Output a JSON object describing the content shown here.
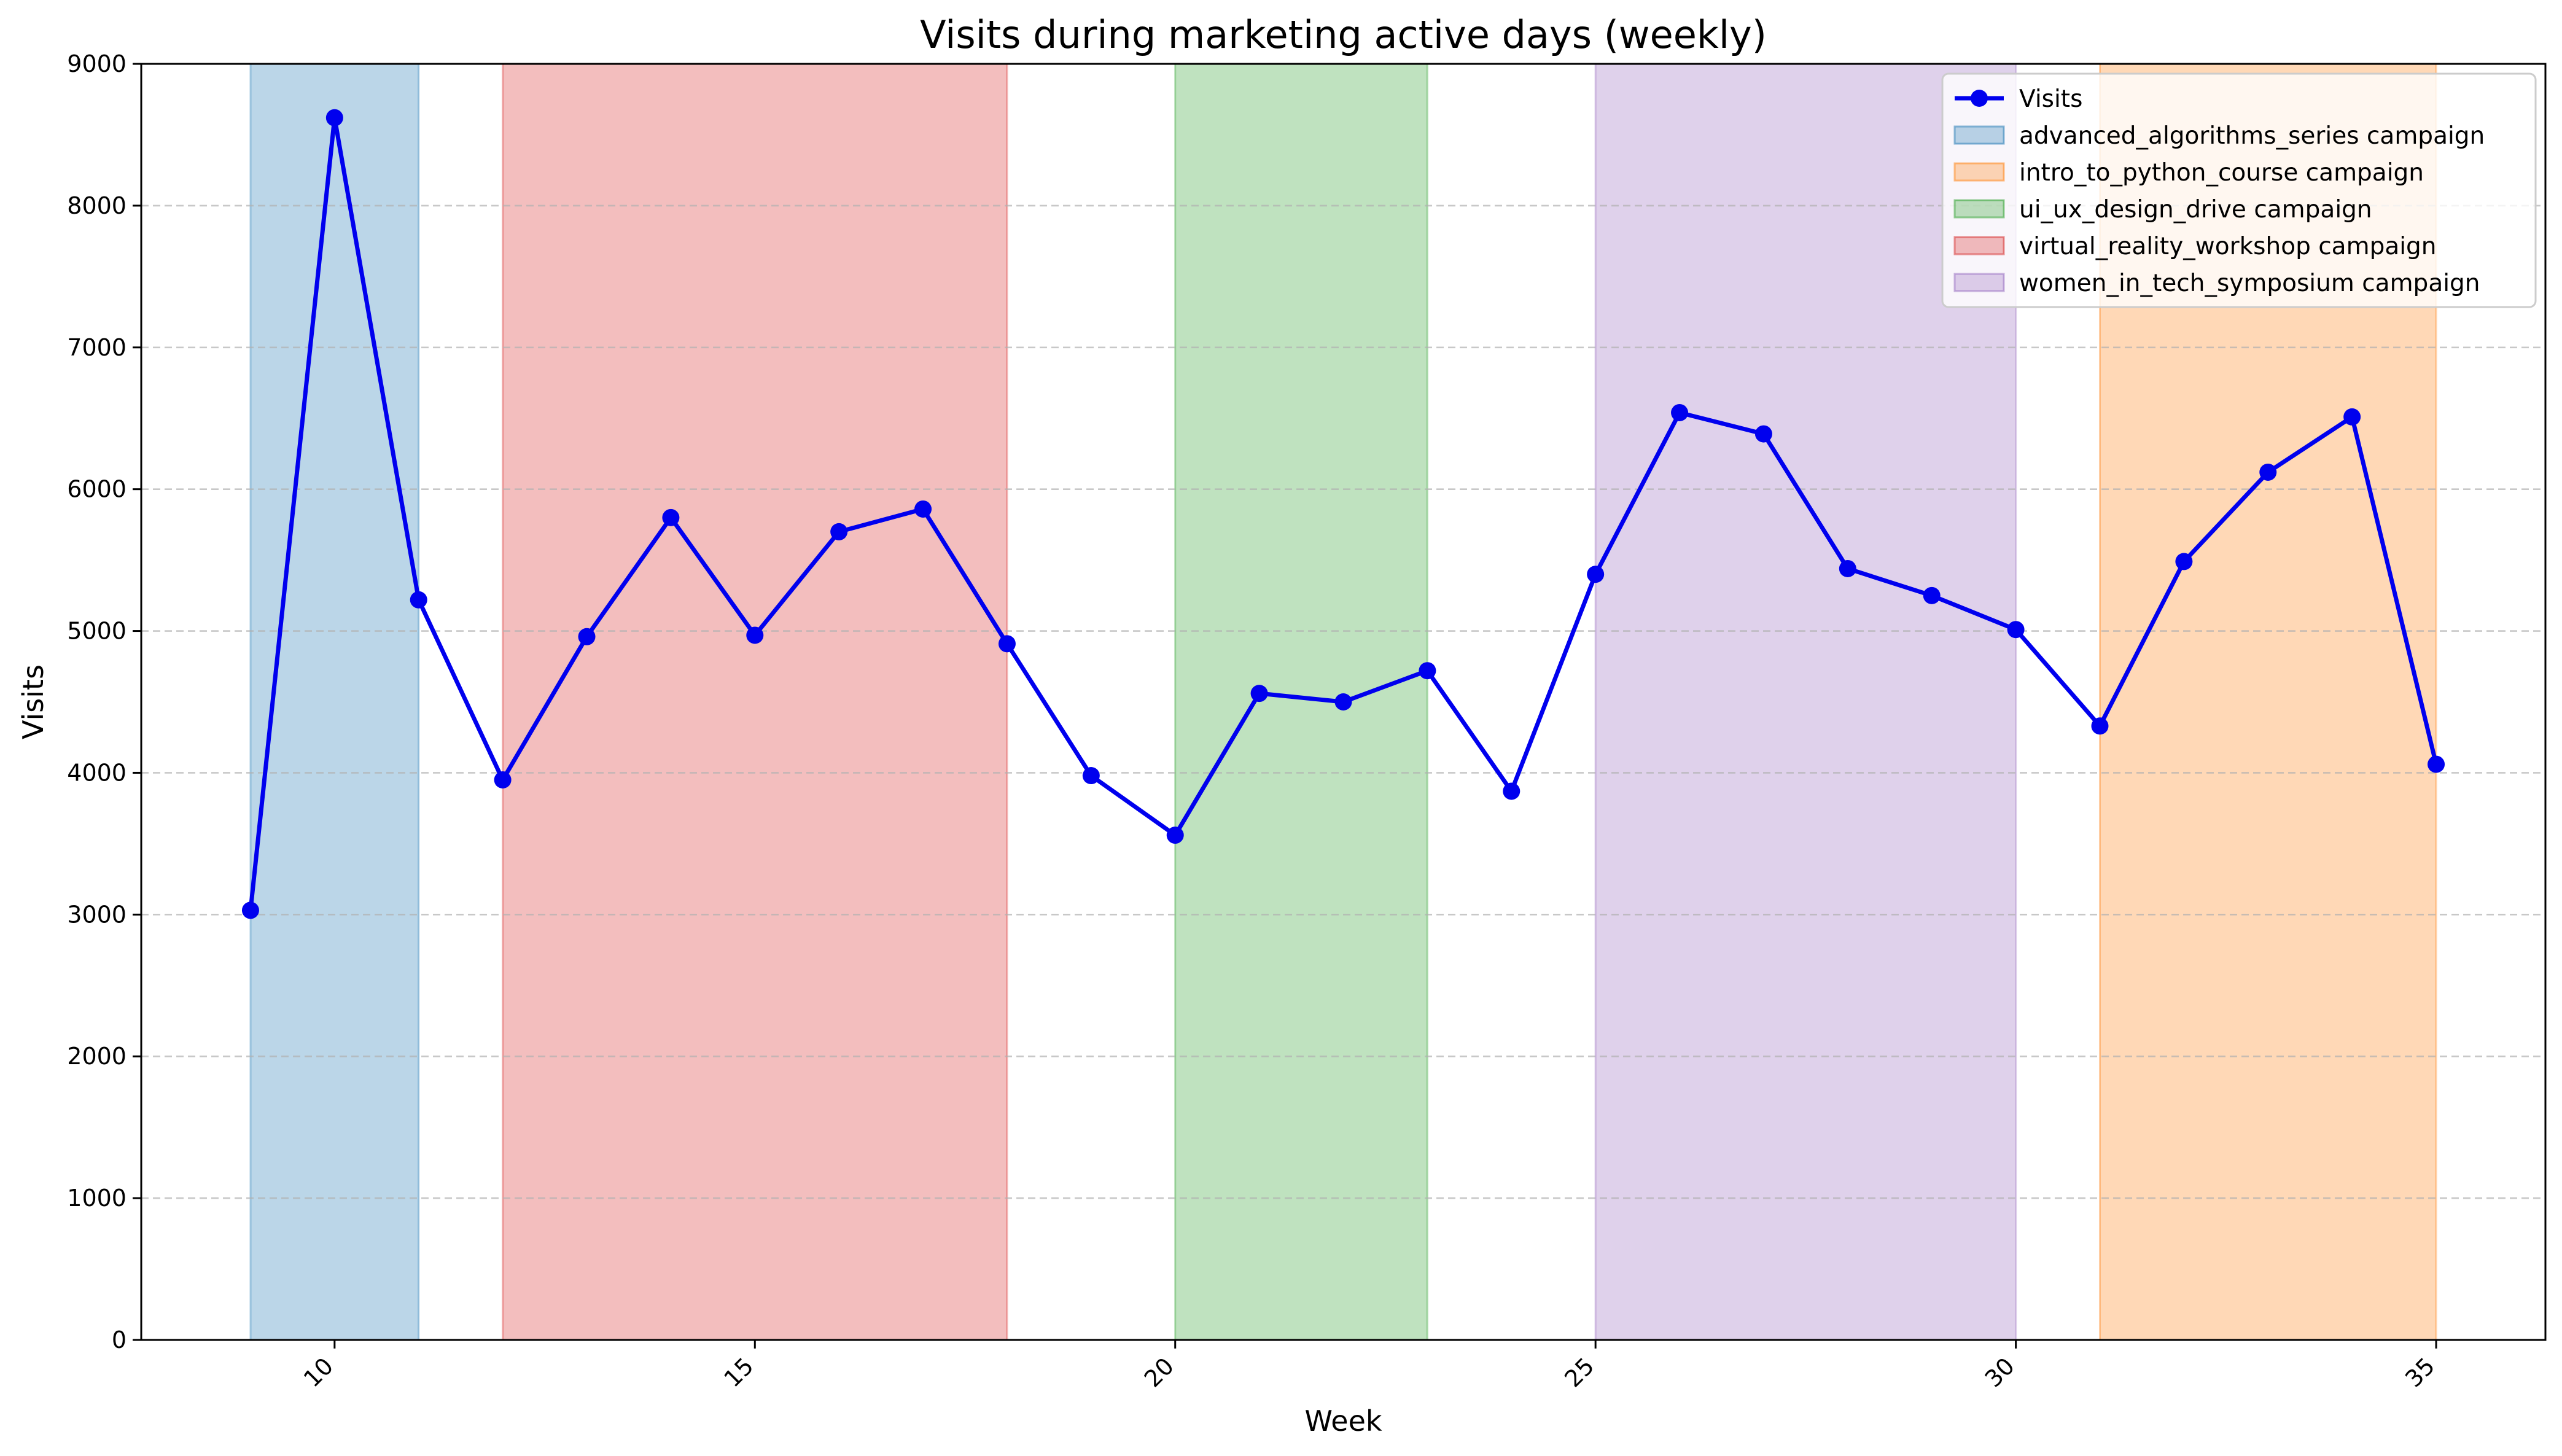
{
  "chart_data": {
    "type": "line",
    "title": "Visits during marketing active days (weekly)",
    "xlabel": "Week",
    "ylabel": "Visits",
    "xlim": [
      7.7,
      36.3
    ],
    "ylim": [
      0,
      9000
    ],
    "x_ticks": [
      10,
      15,
      20,
      25,
      30,
      35
    ],
    "y_ticks": [
      0,
      1000,
      2000,
      3000,
      4000,
      5000,
      6000,
      7000,
      8000,
      9000
    ],
    "grid": "horizontal dashed",
    "legend_position": "top-right",
    "series": [
      {
        "name": "Visits",
        "color": "#0000ee",
        "x": [
          9,
          10,
          11,
          12,
          13,
          14,
          15,
          16,
          17,
          18,
          19,
          20,
          21,
          22,
          23,
          24,
          25,
          26,
          27,
          28,
          29,
          30,
          31,
          32,
          33,
          34,
          35
        ],
        "values": [
          3030,
          8620,
          5220,
          3950,
          4960,
          5800,
          4970,
          5700,
          5860,
          4910,
          3980,
          3560,
          4560,
          4500,
          4720,
          3870,
          5400,
          6540,
          6390,
          5440,
          5250,
          5010,
          4330,
          5490,
          6120,
          6510,
          4060
        ]
      }
    ],
    "campaigns": [
      {
        "name": "advanced_algorithms_series campaign",
        "start": 9,
        "end": 11,
        "color": "#1f77b4"
      },
      {
        "name": "intro_to_python_course campaign",
        "start": 31,
        "end": 35,
        "color": "#ff7f0e"
      },
      {
        "name": "ui_ux_design_drive campaign",
        "start": 20,
        "end": 23,
        "color": "#2ca02c"
      },
      {
        "name": "virtual_reality_workshop campaign",
        "start": 12,
        "end": 18,
        "color": "#d62728"
      },
      {
        "name": "women_in_tech_symposium campaign",
        "start": 25,
        "end": 30,
        "color": "#9467bd"
      }
    ]
  }
}
